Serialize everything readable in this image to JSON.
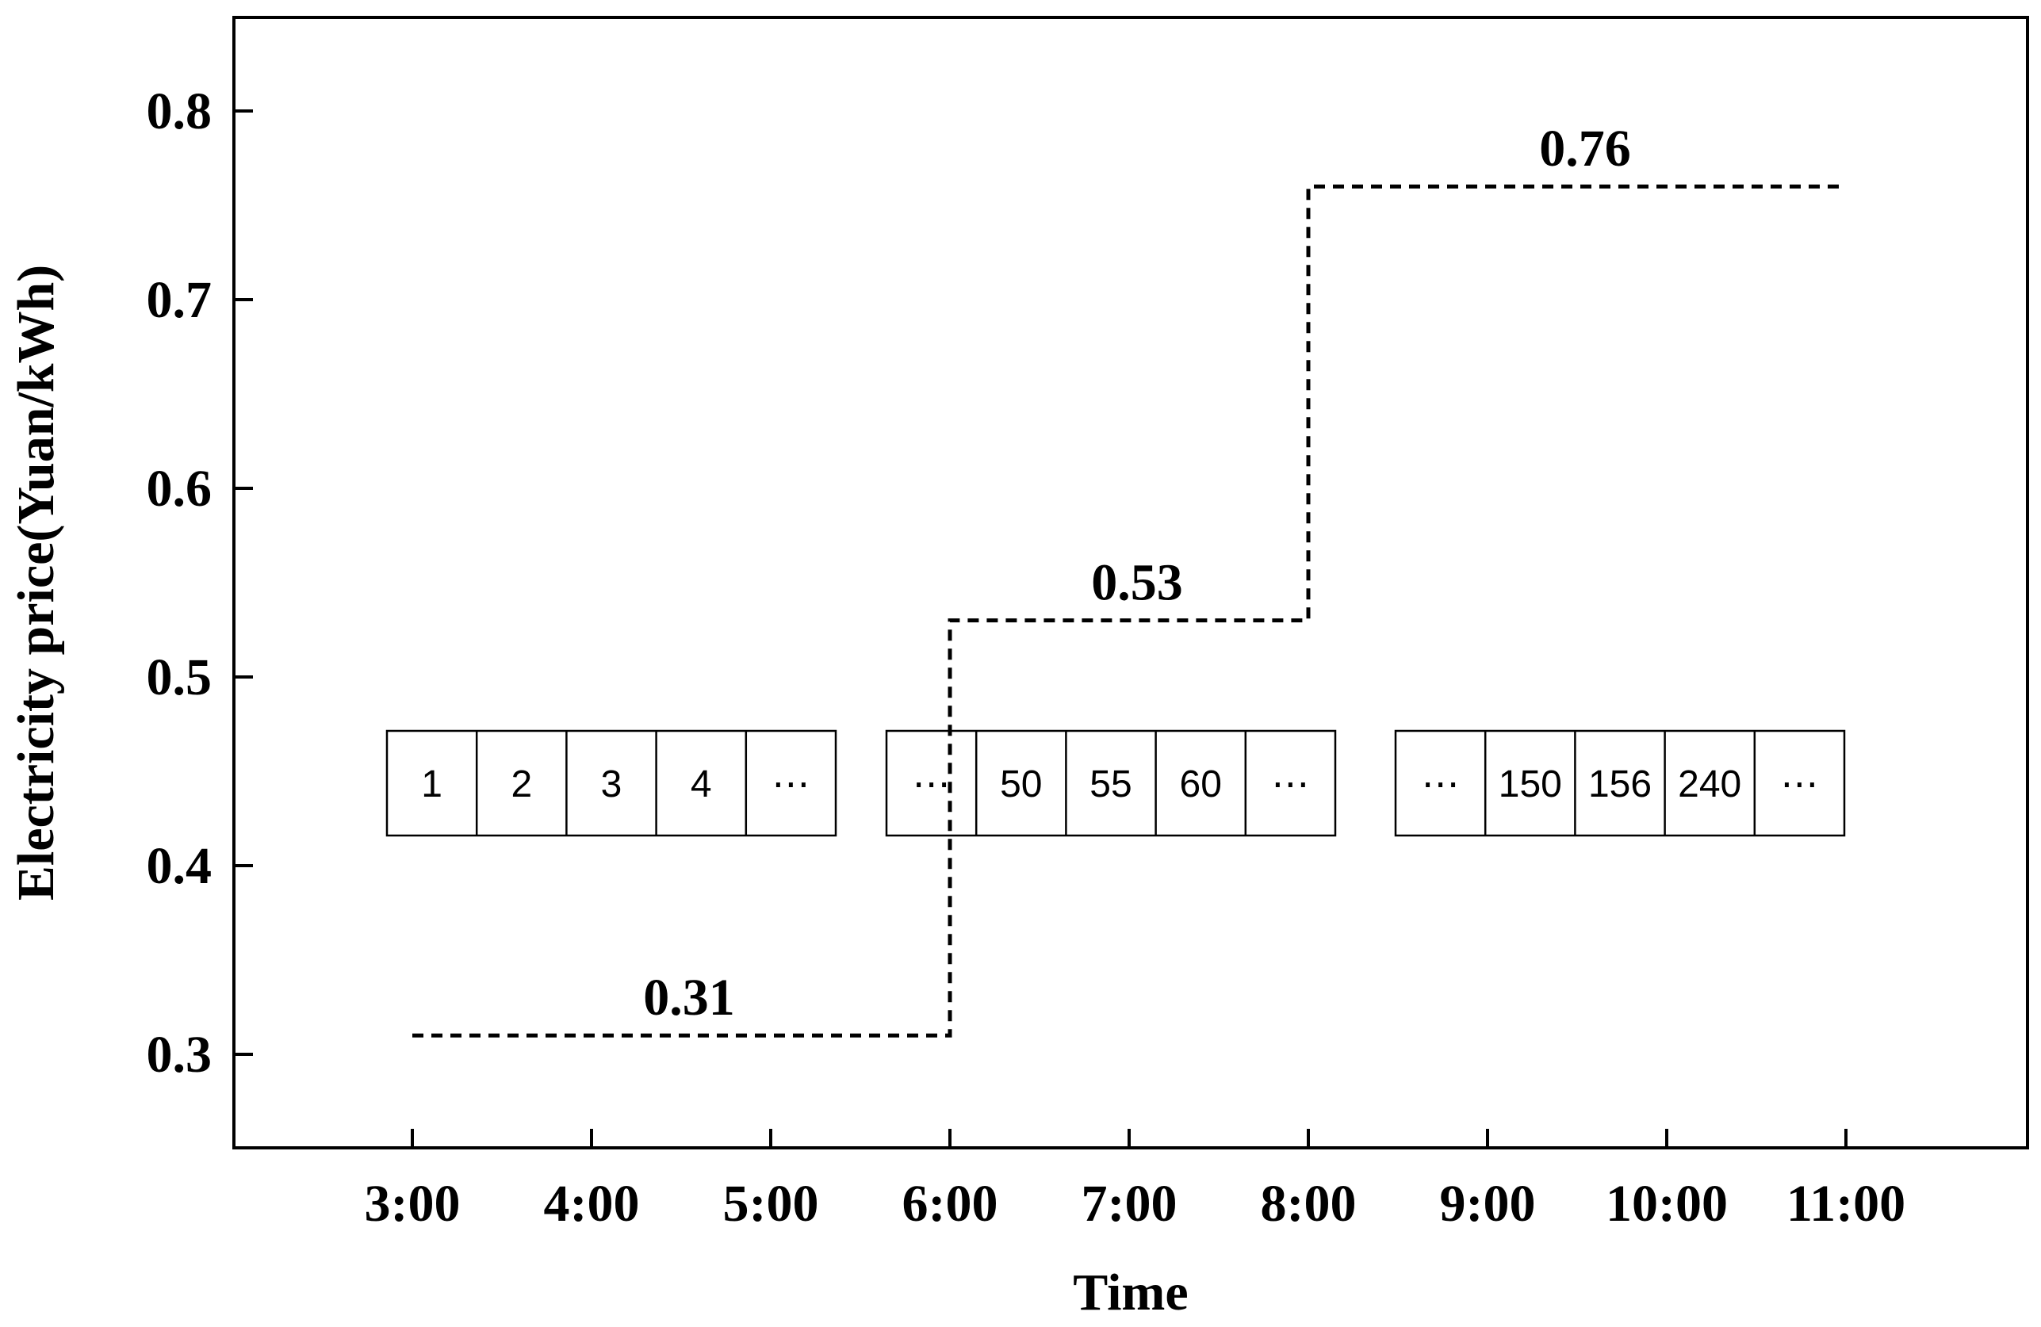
{
  "chart_data": {
    "type": "line",
    "step": true,
    "title": "",
    "xlabel": "Time",
    "ylabel": "Electricity price(Yuan/kWh)",
    "x_categories": [
      "3:00",
      "4:00",
      "5:00",
      "6:00",
      "7:00",
      "8:00",
      "9:00",
      "10:00",
      "11:00"
    ],
    "yticks": [
      "0.3",
      "0.4",
      "0.5",
      "0.6",
      "0.7",
      "0.8"
    ],
    "ylim": [
      0.25,
      0.85
    ],
    "grid": false,
    "legend": "none",
    "line_style": "dashed",
    "line_color": "#000000",
    "series": [
      {
        "points": [
          {
            "x": "3:00",
            "y": 0.31
          },
          {
            "x": "6:00",
            "y": 0.31
          },
          {
            "x": "6:00",
            "y": 0.53
          },
          {
            "x": "8:00",
            "y": 0.53
          },
          {
            "x": "8:00",
            "y": 0.76
          },
          {
            "x": "11:00",
            "y": 0.76
          }
        ]
      }
    ],
    "annotations": [
      {
        "text": "0.31",
        "x_from": "3:00",
        "x_to": "6:00",
        "y": 0.31
      },
      {
        "text": "0.53",
        "x_from": "6:00",
        "x_to": "8:00",
        "y": 0.53
      },
      {
        "text": "0.76",
        "x_from": "8:00",
        "x_to": "11:00",
        "y": 0.76
      }
    ],
    "sequence_boxes": [
      {
        "cells": [
          "1",
          "2",
          "3",
          "4",
          "⋯"
        ]
      },
      {
        "cells": [
          "⋯",
          "50",
          "55",
          "60",
          "⋯"
        ]
      },
      {
        "cells": [
          "⋯",
          "150",
          "156",
          "240",
          "⋯"
        ]
      }
    ]
  }
}
